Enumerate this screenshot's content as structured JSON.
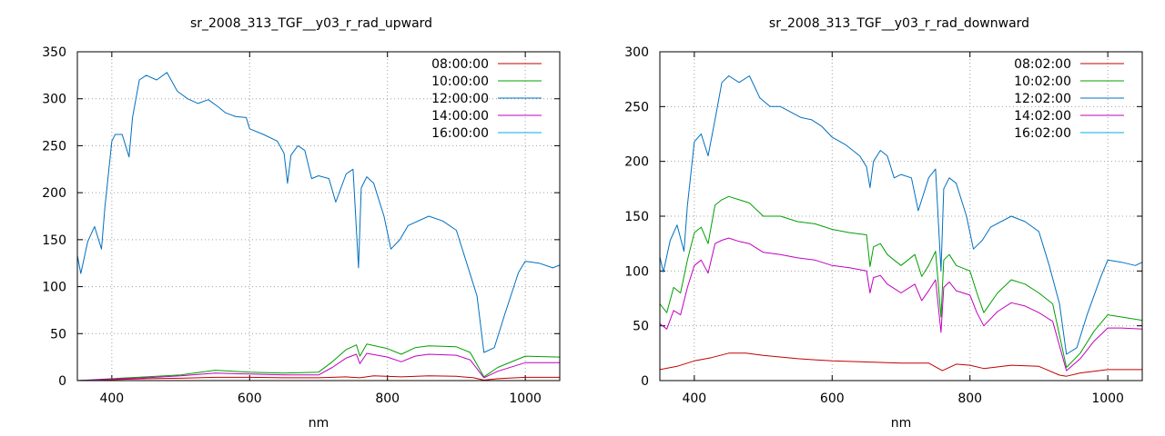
{
  "chart_data": [
    {
      "type": "line",
      "title": "sr_2008_313_TGF__y03_r_rad_upward",
      "xlabel": "nm",
      "ylabel": "",
      "xlim": [
        350,
        1050
      ],
      "ylim": [
        0,
        350
      ],
      "xticks": [
        400,
        600,
        800,
        1000
      ],
      "yticks": [
        0,
        50,
        100,
        150,
        200,
        250,
        300,
        350
      ],
      "grid": true,
      "legend_position": "top-right",
      "series": [
        {
          "name": "08:00:00",
          "color": "#c00000",
          "x": [
            350,
            400,
            450,
            500,
            550,
            600,
            650,
            700,
            740,
            760,
            780,
            820,
            860,
            900,
            925,
            940,
            960,
            1000,
            1050
          ],
          "y": [
            0,
            1,
            2,
            2.5,
            3.5,
            3.5,
            3,
            3,
            4,
            3,
            5,
            4,
            5,
            4.5,
            3,
            0.5,
            2,
            3.5,
            3.5
          ]
        },
        {
          "name": "10:00:00",
          "color": "#00a000",
          "x": [
            350,
            400,
            450,
            500,
            550,
            600,
            650,
            700,
            720,
            740,
            755,
            760,
            770,
            800,
            820,
            840,
            860,
            900,
            920,
            940,
            960,
            1000,
            1050
          ],
          "y": [
            0,
            2,
            4,
            6,
            11,
            9,
            8,
            9,
            20,
            33,
            38,
            26,
            39,
            34,
            28,
            35,
            37,
            36,
            30,
            4,
            14,
            26,
            25
          ]
        },
        {
          "name": "12:00:00",
          "color": "#0070c0",
          "x": [
            350,
            355,
            365,
            375,
            385,
            390,
            400,
            405,
            415,
            425,
            430,
            440,
            450,
            465,
            480,
            495,
            510,
            525,
            540,
            555,
            565,
            580,
            595,
            600,
            620,
            640,
            650,
            655,
            660,
            670,
            680,
            690,
            700,
            715,
            725,
            740,
            750,
            758,
            762,
            770,
            780,
            795,
            805,
            818,
            830,
            860,
            880,
            900,
            915,
            930,
            940,
            955,
            970,
            990,
            1000,
            1020,
            1040,
            1050
          ],
          "y": [
            133,
            114,
            148,
            164,
            140,
            185,
            255,
            262,
            262,
            238,
            280,
            320,
            325,
            320,
            328,
            308,
            300,
            295,
            299,
            291,
            285,
            281,
            280,
            268,
            262,
            255,
            242,
            210,
            240,
            250,
            245,
            215,
            218,
            215,
            190,
            220,
            225,
            120,
            205,
            217,
            210,
            175,
            140,
            150,
            165,
            175,
            170,
            160,
            125,
            90,
            30,
            35,
            70,
            115,
            127,
            125,
            120,
            123
          ]
        },
        {
          "name": "14:00:00",
          "color": "#c000c0",
          "x": [
            350,
            400,
            450,
            500,
            550,
            600,
            650,
            700,
            720,
            740,
            755,
            760,
            770,
            800,
            820,
            840,
            860,
            900,
            920,
            940,
            960,
            1000,
            1050
          ],
          "y": [
            0,
            1.5,
            3,
            5,
            8,
            7,
            6,
            6,
            14,
            24,
            28,
            18,
            29,
            25,
            20,
            26,
            28,
            27,
            22,
            3,
            10,
            19,
            19
          ]
        },
        {
          "name": "16:00:00",
          "color": "#00b0e0",
          "x": [],
          "y": []
        }
      ]
    },
    {
      "type": "line",
      "title": "sr_2008_313_TGF__y03_r_rad_downward",
      "xlabel": "nm",
      "ylabel": "",
      "xlim": [
        350,
        1050
      ],
      "ylim": [
        0,
        300
      ],
      "xticks": [
        400,
        600,
        800,
        1000
      ],
      "yticks": [
        0,
        50,
        100,
        150,
        200,
        250,
        300
      ],
      "grid": true,
      "legend_position": "top-right",
      "series": [
        {
          "name": "08:02:00",
          "color": "#c00000",
          "x": [
            350,
            375,
            400,
            425,
            450,
            475,
            500,
            550,
            600,
            650,
            700,
            740,
            760,
            780,
            800,
            820,
            860,
            900,
            930,
            940,
            960,
            1000,
            1050
          ],
          "y": [
            10,
            13,
            18,
            21,
            25,
            25,
            23,
            20,
            18,
            17,
            16,
            16,
            9,
            15,
            14,
            11,
            14,
            13,
            5,
            4,
            7,
            10,
            10
          ]
        },
        {
          "name": "10:02:00",
          "color": "#00a000",
          "x": [
            350,
            360,
            370,
            380,
            390,
            400,
            410,
            420,
            430,
            440,
            450,
            465,
            480,
            500,
            525,
            550,
            575,
            600,
            625,
            650,
            655,
            660,
            670,
            680,
            690,
            700,
            720,
            730,
            740,
            750,
            758,
            762,
            770,
            780,
            800,
            810,
            820,
            840,
            860,
            880,
            900,
            920,
            940,
            960,
            980,
            1000,
            1020,
            1050
          ],
          "y": [
            70,
            62,
            85,
            80,
            110,
            135,
            140,
            125,
            160,
            165,
            168,
            165,
            162,
            150,
            150,
            145,
            143,
            138,
            135,
            133,
            104,
            122,
            125,
            115,
            110,
            105,
            115,
            95,
            105,
            118,
            58,
            110,
            115,
            105,
            100,
            80,
            62,
            80,
            92,
            88,
            80,
            70,
            12,
            25,
            45,
            60,
            58,
            55
          ]
        },
        {
          "name": "12:02:00",
          "color": "#0070c0",
          "x": [
            350,
            355,
            365,
            375,
            385,
            390,
            400,
            410,
            420,
            430,
            440,
            450,
            465,
            480,
            495,
            510,
            525,
            540,
            555,
            570,
            585,
            600,
            620,
            640,
            650,
            655,
            660,
            670,
            680,
            690,
            700,
            715,
            725,
            740,
            750,
            758,
            762,
            770,
            780,
            795,
            805,
            818,
            830,
            860,
            880,
            900,
            915,
            930,
            940,
            955,
            970,
            990,
            1000,
            1020,
            1040,
            1050
          ],
          "y": [
            113,
            99,
            128,
            142,
            118,
            160,
            218,
            225,
            205,
            238,
            272,
            278,
            272,
            278,
            258,
            250,
            250,
            245,
            240,
            238,
            232,
            222,
            215,
            205,
            195,
            176,
            200,
            210,
            205,
            185,
            188,
            185,
            155,
            185,
            193,
            100,
            175,
            185,
            180,
            150,
            120,
            128,
            140,
            150,
            145,
            136,
            105,
            70,
            24,
            30,
            60,
            95,
            110,
            108,
            105,
            108
          ]
        },
        {
          "name": "14:02:00",
          "color": "#c000c0",
          "x": [
            350,
            360,
            370,
            380,
            390,
            400,
            410,
            420,
            430,
            440,
            450,
            465,
            480,
            500,
            525,
            550,
            575,
            600,
            625,
            650,
            655,
            660,
            670,
            680,
            690,
            700,
            720,
            730,
            740,
            750,
            758,
            762,
            770,
            780,
            800,
            810,
            820,
            840,
            860,
            880,
            900,
            920,
            940,
            960,
            980,
            1000,
            1020,
            1050
          ],
          "y": [
            52,
            47,
            64,
            60,
            85,
            105,
            110,
            98,
            125,
            128,
            130,
            127,
            125,
            117,
            115,
            112,
            110,
            105,
            103,
            100,
            80,
            94,
            96,
            88,
            84,
            80,
            88,
            73,
            82,
            92,
            44,
            85,
            90,
            82,
            78,
            62,
            50,
            63,
            71,
            68,
            62,
            54,
            9,
            20,
            36,
            48,
            48,
            47
          ]
        },
        {
          "name": "16:02:00",
          "color": "#00b0e0",
          "x": [],
          "y": []
        }
      ]
    }
  ]
}
